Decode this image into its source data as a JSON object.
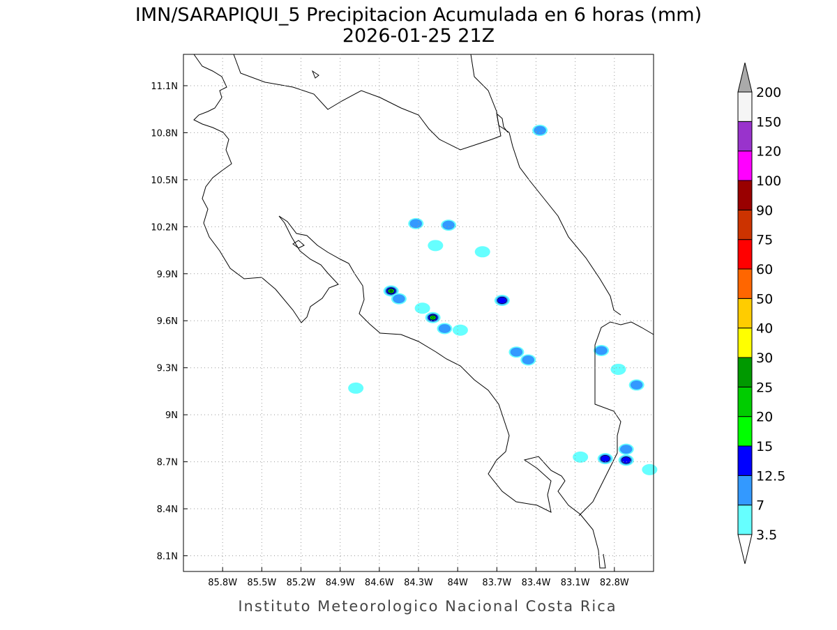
{
  "map": {
    "title": "IMN/SARAPIQUI_5 Precipitacion Acumulada en 6 horas (mm)",
    "subtitle": "2026-01-25 21Z",
    "footer": "Instituto Meteorologico Nacional Costa Rica",
    "xlim": [
      -86.1,
      -82.5
    ],
    "ylim": [
      8.0,
      11.3
    ],
    "xticks": [
      {
        "value": -85.8,
        "label": "85.8W"
      },
      {
        "value": -85.5,
        "label": "85.5W"
      },
      {
        "value": -85.2,
        "label": "85.2W"
      },
      {
        "value": -84.9,
        "label": "84.9W"
      },
      {
        "value": -84.6,
        "label": "84.6W"
      },
      {
        "value": -84.3,
        "label": "84.3W"
      },
      {
        "value": -84.0,
        "label": "84W"
      },
      {
        "value": -83.7,
        "label": "83.7W"
      },
      {
        "value": -83.4,
        "label": "83.4W"
      },
      {
        "value": -83.1,
        "label": "83.1W"
      },
      {
        "value": -82.8,
        "label": "82.8W"
      }
    ],
    "yticks": [
      {
        "value": 8.1,
        "label": "8.1N"
      },
      {
        "value": 8.4,
        "label": "8.4N"
      },
      {
        "value": 8.7,
        "label": "8.7N"
      },
      {
        "value": 9.0,
        "label": "9N"
      },
      {
        "value": 9.3,
        "label": "9.3N"
      },
      {
        "value": 9.6,
        "label": "9.6N"
      },
      {
        "value": 9.9,
        "label": "9.9N"
      },
      {
        "value": 10.2,
        "label": "10.2N"
      },
      {
        "value": 10.5,
        "label": "10.5N"
      },
      {
        "value": 10.8,
        "label": "10.8N"
      },
      {
        "value": 11.1,
        "label": "11.1N"
      }
    ],
    "grid": true,
    "colorbar": {
      "levels": [
        3.5,
        7,
        12.5,
        15,
        20,
        25,
        30,
        40,
        50,
        60,
        75,
        90,
        100,
        120,
        150,
        200
      ],
      "colors": [
        "#66ffff",
        "#3399ff",
        "#0000ff",
        "#00ff00",
        "#00cc00",
        "#009900",
        "#ffff00",
        "#ffcc00",
        "#ff6600",
        "#ff0000",
        "#cc3300",
        "#990000",
        "#ff00ff",
        "#9933cc",
        "#f5f5f5"
      ],
      "over_color": "#aaaaaa",
      "under_color": "#ffffff"
    },
    "cells": [
      {
        "lon": -83.37,
        "lat": 10.815,
        "value": 7
      },
      {
        "lon": -84.32,
        "lat": 10.22,
        "value": 7
      },
      {
        "lon": -84.07,
        "lat": 10.21,
        "value": 7
      },
      {
        "lon": -84.17,
        "lat": 10.08,
        "value": 3.5
      },
      {
        "lon": -83.81,
        "lat": 10.04,
        "value": 3.5
      },
      {
        "lon": -84.51,
        "lat": 9.79,
        "value": 25
      },
      {
        "lon": -84.45,
        "lat": 9.74,
        "value": 7
      },
      {
        "lon": -83.66,
        "lat": 9.73,
        "value": 12.5
      },
      {
        "lon": -84.19,
        "lat": 9.62,
        "value": 20
      },
      {
        "lon": -84.27,
        "lat": 9.68,
        "value": 3.5
      },
      {
        "lon": -84.1,
        "lat": 9.55,
        "value": 7
      },
      {
        "lon": -83.98,
        "lat": 9.54,
        "value": 3.5
      },
      {
        "lon": -83.55,
        "lat": 9.4,
        "value": 7
      },
      {
        "lon": -83.46,
        "lat": 9.35,
        "value": 7
      },
      {
        "lon": -82.9,
        "lat": 9.41,
        "value": 7
      },
      {
        "lon": -82.77,
        "lat": 9.29,
        "value": 3.5
      },
      {
        "lon": -82.63,
        "lat": 9.19,
        "value": 7
      },
      {
        "lon": -82.87,
        "lat": 8.72,
        "value": 12.5
      },
      {
        "lon": -82.71,
        "lat": 8.71,
        "value": 12.5
      },
      {
        "lon": -82.71,
        "lat": 8.78,
        "value": 7
      },
      {
        "lon": -83.06,
        "lat": 8.73,
        "value": 3.5
      },
      {
        "lon": -82.53,
        "lat": 8.65,
        "value": 3.5
      },
      {
        "lon": -84.78,
        "lat": 9.17,
        "value": 3.5
      }
    ]
  }
}
